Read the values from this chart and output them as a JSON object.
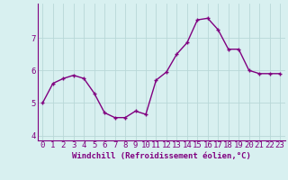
{
  "x": [
    0,
    1,
    2,
    3,
    4,
    5,
    6,
    7,
    8,
    9,
    10,
    11,
    12,
    13,
    14,
    15,
    16,
    17,
    18,
    19,
    20,
    21,
    22,
    23
  ],
  "y": [
    5.0,
    5.6,
    5.75,
    5.85,
    5.75,
    5.3,
    4.7,
    4.55,
    4.55,
    4.75,
    4.65,
    5.7,
    5.95,
    6.5,
    6.85,
    7.55,
    7.6,
    7.25,
    6.65,
    6.65,
    6.0,
    5.9,
    5.9,
    5.9
  ],
  "line_color": "#800080",
  "marker": "+",
  "marker_color": "#800080",
  "bg_color": "#d8f0f0",
  "grid_color": "#b8d8d8",
  "xlabel": "Windchill (Refroidissement éolien,°C)",
  "xlim": [
    -0.5,
    23.5
  ],
  "ylim": [
    3.85,
    8.05
  ],
  "yticks": [
    4,
    5,
    6,
    7
  ],
  "xtick_labels": [
    "0",
    "1",
    "2",
    "3",
    "4",
    "5",
    "6",
    "7",
    "8",
    "9",
    "10",
    "11",
    "12",
    "13",
    "14",
    "15",
    "16",
    "17",
    "18",
    "19",
    "20",
    "21",
    "22",
    "23"
  ],
  "xlabel_fontsize": 6.5,
  "tick_fontsize": 6.5,
  "line_width": 1.0,
  "marker_size": 3.5
}
